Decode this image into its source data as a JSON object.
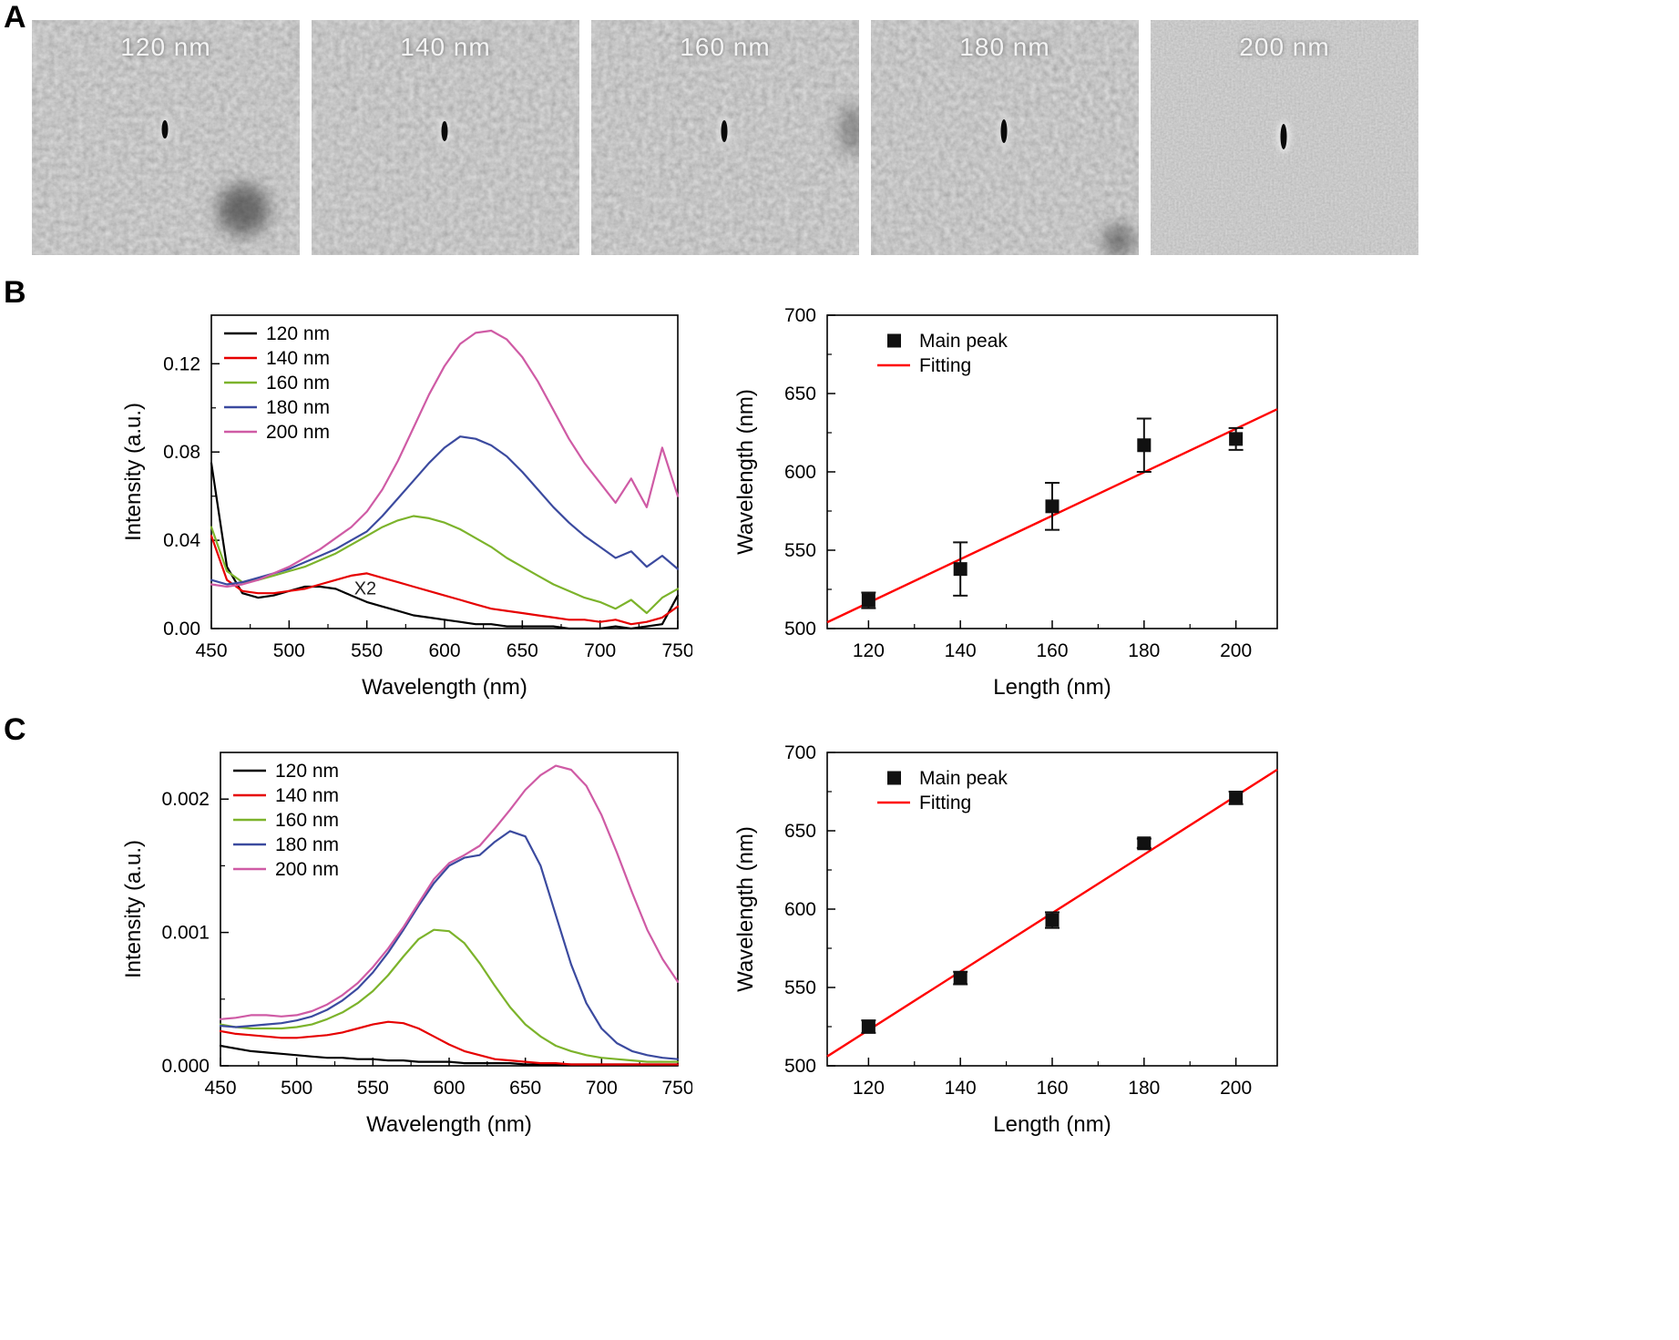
{
  "panels": {
    "a": "A",
    "b": "B",
    "c": "C"
  },
  "sem_images": [
    {
      "label": "120 nm"
    },
    {
      "label": "140 nm"
    },
    {
      "label": "160 nm"
    },
    {
      "label": "180 nm"
    },
    {
      "label": "200 nm"
    }
  ],
  "colors": {
    "s120": "#000000",
    "s140": "#e60000",
    "s160": "#7cb32b",
    "s180": "#3b4a9f",
    "s200": "#cf5ba5",
    "fit": "#ff0000",
    "marker": "#111111"
  },
  "chart_data": [
    {
      "id": "spectra-b",
      "type": "line",
      "xlabel": "Wavelength (nm)",
      "ylabel": "Intensity (a.u.)",
      "xlim": [
        450,
        750
      ],
      "ylim": [
        0,
        0.142
      ],
      "xticks": [
        450,
        500,
        550,
        600,
        650,
        700,
        750
      ],
      "yticks": [
        0,
        0.04,
        0.08,
        0.12
      ],
      "ydec": 2,
      "annotations": [
        {
          "text": "X2",
          "x": 549,
          "y": 0.0155
        }
      ],
      "x": [
        450,
        460,
        470,
        480,
        490,
        500,
        510,
        520,
        530,
        540,
        550,
        560,
        570,
        580,
        590,
        600,
        610,
        620,
        630,
        640,
        650,
        660,
        670,
        680,
        690,
        700,
        710,
        720,
        730,
        740,
        750
      ],
      "series": [
        {
          "name": "120 nm",
          "color": "#000000",
          "y": [
            0.075,
            0.028,
            0.016,
            0.014,
            0.015,
            0.017,
            0.019,
            0.019,
            0.018,
            0.015,
            0.012,
            0.01,
            0.008,
            0.006,
            0.005,
            0.004,
            0.003,
            0.002,
            0.002,
            0.001,
            0.001,
            0.001,
            0.001,
            0.0,
            0.0,
            0.0,
            0.001,
            0.0,
            0.001,
            0.002,
            0.015
          ]
        },
        {
          "name": "140 nm",
          "color": "#e60000",
          "y": [
            0.042,
            0.022,
            0.017,
            0.016,
            0.016,
            0.017,
            0.018,
            0.02,
            0.022,
            0.024,
            0.025,
            0.023,
            0.021,
            0.019,
            0.017,
            0.015,
            0.013,
            0.011,
            0.009,
            0.008,
            0.007,
            0.006,
            0.005,
            0.004,
            0.004,
            0.003,
            0.004,
            0.002,
            0.003,
            0.005,
            0.01
          ]
        },
        {
          "name": "160 nm",
          "color": "#7cb32b",
          "y": [
            0.046,
            0.026,
            0.021,
            0.022,
            0.024,
            0.026,
            0.028,
            0.031,
            0.034,
            0.038,
            0.042,
            0.046,
            0.049,
            0.051,
            0.05,
            0.048,
            0.045,
            0.041,
            0.037,
            0.032,
            0.028,
            0.024,
            0.02,
            0.017,
            0.014,
            0.012,
            0.009,
            0.013,
            0.007,
            0.014,
            0.018
          ]
        },
        {
          "name": "180 nm",
          "color": "#3b4a9f",
          "y": [
            0.022,
            0.02,
            0.021,
            0.023,
            0.025,
            0.027,
            0.03,
            0.033,
            0.036,
            0.04,
            0.044,
            0.051,
            0.059,
            0.067,
            0.075,
            0.082,
            0.087,
            0.086,
            0.083,
            0.078,
            0.071,
            0.063,
            0.055,
            0.048,
            0.042,
            0.037,
            0.032,
            0.035,
            0.028,
            0.033,
            0.027
          ]
        },
        {
          "name": "200 nm",
          "color": "#cf5ba5",
          "y": [
            0.02,
            0.019,
            0.02,
            0.022,
            0.025,
            0.028,
            0.032,
            0.036,
            0.041,
            0.046,
            0.053,
            0.063,
            0.076,
            0.091,
            0.106,
            0.119,
            0.129,
            0.134,
            0.135,
            0.131,
            0.123,
            0.112,
            0.099,
            0.086,
            0.075,
            0.066,
            0.057,
            0.068,
            0.055,
            0.082,
            0.06
          ]
        }
      ]
    },
    {
      "id": "peaks-b",
      "type": "scatter",
      "xlabel": "Length (nm)",
      "ylabel": "Wavelength (nm)",
      "xlim": [
        111,
        209
      ],
      "ylim": [
        500,
        700
      ],
      "xticks": [
        120,
        140,
        160,
        180,
        200
      ],
      "yticks": [
        500,
        550,
        600,
        650,
        700
      ],
      "ydec": 0,
      "points": {
        "x": [
          120,
          140,
          160,
          180,
          200
        ],
        "y": [
          518,
          538,
          578,
          617,
          621
        ],
        "yerr": [
          5,
          17,
          15,
          17,
          7
        ]
      },
      "fit": {
        "color": "#ff0000",
        "x": [
          111,
          209
        ],
        "y": [
          504,
          640
        ]
      },
      "legend_entries": [
        {
          "type": "marker",
          "label": "Main peak",
          "color": "#111111"
        },
        {
          "type": "line",
          "label": "Fitting",
          "color": "#ff0000"
        }
      ]
    },
    {
      "id": "spectra-c",
      "type": "line",
      "xlabel": "Wavelength (nm)",
      "ylabel": "Intensity (a.u.)",
      "xlim": [
        450,
        750
      ],
      "ylim": [
        0,
        0.00235
      ],
      "xticks": [
        450,
        500,
        550,
        600,
        650,
        700,
        750
      ],
      "yticks": [
        0,
        0.001,
        0.002
      ],
      "ydec": 3,
      "annotations": [],
      "x": [
        450,
        460,
        470,
        480,
        490,
        500,
        510,
        520,
        530,
        540,
        550,
        560,
        570,
        580,
        590,
        600,
        610,
        620,
        630,
        640,
        650,
        660,
        670,
        680,
        690,
        700,
        710,
        720,
        730,
        740,
        750
      ],
      "series": [
        {
          "name": "120 nm",
          "color": "#000000",
          "y": [
            0.00015,
            0.00013,
            0.00011,
            0.0001,
            9e-05,
            8e-05,
            7e-05,
            6e-05,
            6e-05,
            5e-05,
            5e-05,
            4e-05,
            4e-05,
            3e-05,
            3e-05,
            3e-05,
            2e-05,
            2e-05,
            2e-05,
            2e-05,
            1e-05,
            1e-05,
            1e-05,
            1e-05,
            1e-05,
            1e-05,
            1e-05,
            1e-05,
            1e-05,
            1e-05,
            1e-05
          ]
        },
        {
          "name": "140 nm",
          "color": "#e60000",
          "y": [
            0.00026,
            0.00024,
            0.00023,
            0.00022,
            0.00021,
            0.00021,
            0.00022,
            0.00023,
            0.00025,
            0.00028,
            0.00031,
            0.00033,
            0.00032,
            0.00028,
            0.00022,
            0.00016,
            0.00011,
            8e-05,
            5e-05,
            4e-05,
            3e-05,
            2e-05,
            2e-05,
            1e-05,
            1e-05,
            1e-05,
            1e-05,
            1e-05,
            1e-05,
            1e-05,
            1e-05
          ]
        },
        {
          "name": "160 nm",
          "color": "#7cb32b",
          "y": [
            0.00031,
            0.00029,
            0.00028,
            0.00028,
            0.00028,
            0.00029,
            0.00031,
            0.00035,
            0.0004,
            0.00047,
            0.00056,
            0.00068,
            0.00082,
            0.00095,
            0.00102,
            0.00101,
            0.00092,
            0.00077,
            0.0006,
            0.00044,
            0.00031,
            0.00022,
            0.00015,
            0.00011,
            8e-05,
            6e-05,
            5e-05,
            4e-05,
            3e-05,
            3e-05,
            3e-05
          ]
        },
        {
          "name": "180 nm",
          "color": "#3b4a9f",
          "y": [
            0.0003,
            0.00029,
            0.0003,
            0.00031,
            0.00032,
            0.00034,
            0.00037,
            0.00042,
            0.00049,
            0.00058,
            0.0007,
            0.00085,
            0.00102,
            0.0012,
            0.00137,
            0.0015,
            0.00156,
            0.00158,
            0.00168,
            0.00176,
            0.00172,
            0.0015,
            0.00113,
            0.00076,
            0.00047,
            0.00028,
            0.00017,
            0.00011,
            8e-05,
            6e-05,
            5e-05
          ]
        },
        {
          "name": "200 nm",
          "color": "#cf5ba5",
          "y": [
            0.00035,
            0.00036,
            0.00038,
            0.00038,
            0.00037,
            0.00038,
            0.00041,
            0.00046,
            0.00053,
            0.00062,
            0.00074,
            0.00088,
            0.00104,
            0.00122,
            0.0014,
            0.00152,
            0.00158,
            0.00165,
            0.00178,
            0.00192,
            0.00207,
            0.00218,
            0.00225,
            0.00222,
            0.0021,
            0.00188,
            0.0016,
            0.0013,
            0.00102,
            0.0008,
            0.00063
          ]
        }
      ]
    },
    {
      "id": "peaks-c",
      "type": "scatter",
      "xlabel": "Length (nm)",
      "ylabel": "Wavelength (nm)",
      "xlim": [
        111,
        209
      ],
      "ylim": [
        500,
        700
      ],
      "xticks": [
        120,
        140,
        160,
        180,
        200
      ],
      "yticks": [
        500,
        550,
        600,
        650,
        700
      ],
      "ydec": 0,
      "points": {
        "x": [
          120,
          140,
          160,
          180,
          200
        ],
        "y": [
          525,
          556,
          593,
          642,
          671
        ],
        "yerr": [
          4,
          4,
          5,
          3,
          4
        ]
      },
      "fit": {
        "color": "#ff0000",
        "x": [
          111,
          209
        ],
        "y": [
          506,
          689
        ]
      },
      "legend_entries": [
        {
          "type": "marker",
          "label": "Main peak",
          "color": "#111111"
        },
        {
          "type": "line",
          "label": "Fitting",
          "color": "#ff0000"
        }
      ]
    }
  ]
}
